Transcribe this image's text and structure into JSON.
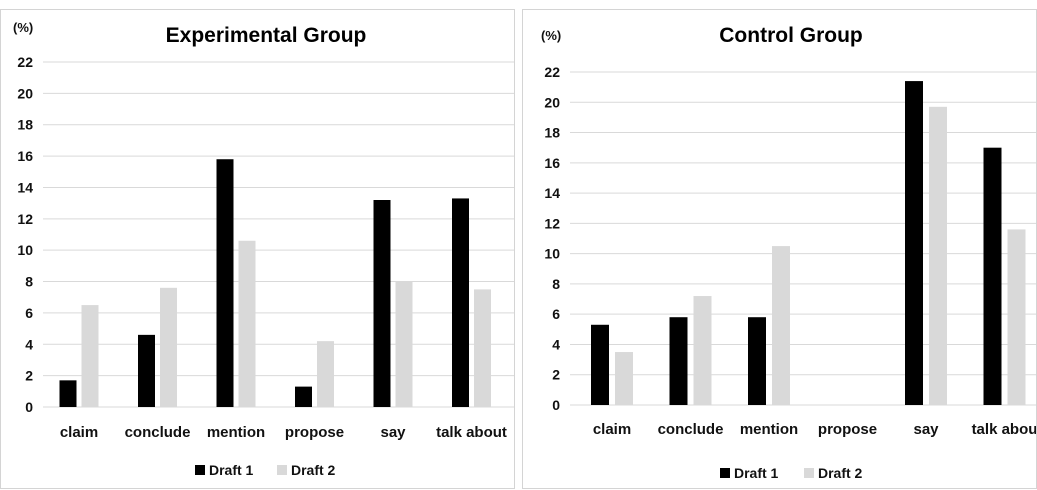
{
  "colors": {
    "draft1": "#000000",
    "draft2": "#d9d9d9",
    "grid": "#d9d9d9"
  },
  "chart_data": [
    {
      "type": "bar",
      "title": "Experimental Group",
      "ylabel": "(%)",
      "categories": [
        "claim",
        "conclude",
        "mention",
        "propose",
        "say",
        "talk about"
      ],
      "series": [
        {
          "name": "Draft 1",
          "values": [
            1.7,
            4.6,
            15.8,
            1.3,
            13.2,
            13.3
          ]
        },
        {
          "name": "Draft 2",
          "values": [
            6.5,
            7.6,
            10.6,
            4.2,
            8.0,
            7.5
          ]
        }
      ],
      "yticks": [
        0,
        2,
        4,
        6,
        8,
        10,
        12,
        14,
        16,
        18,
        20,
        22
      ],
      "ylim": [
        0,
        22
      ],
      "grid": true,
      "legend": "bottom"
    },
    {
      "type": "bar",
      "title": "Control Group",
      "ylabel": "(%)",
      "categories": [
        "claim",
        "conclude",
        "mention",
        "propose",
        "say",
        "talk abou"
      ],
      "series": [
        {
          "name": "Draft 1",
          "values": [
            5.3,
            5.8,
            5.8,
            0,
            21.4,
            17.0
          ]
        },
        {
          "name": "Draft 2",
          "values": [
            3.5,
            7.2,
            10.5,
            0,
            19.7,
            11.6
          ]
        }
      ],
      "yticks": [
        0,
        2,
        4,
        6,
        8,
        10,
        12,
        14,
        16,
        18,
        20,
        22
      ],
      "ylim": [
        0,
        22
      ],
      "grid": true,
      "legend": "bottom"
    }
  ]
}
